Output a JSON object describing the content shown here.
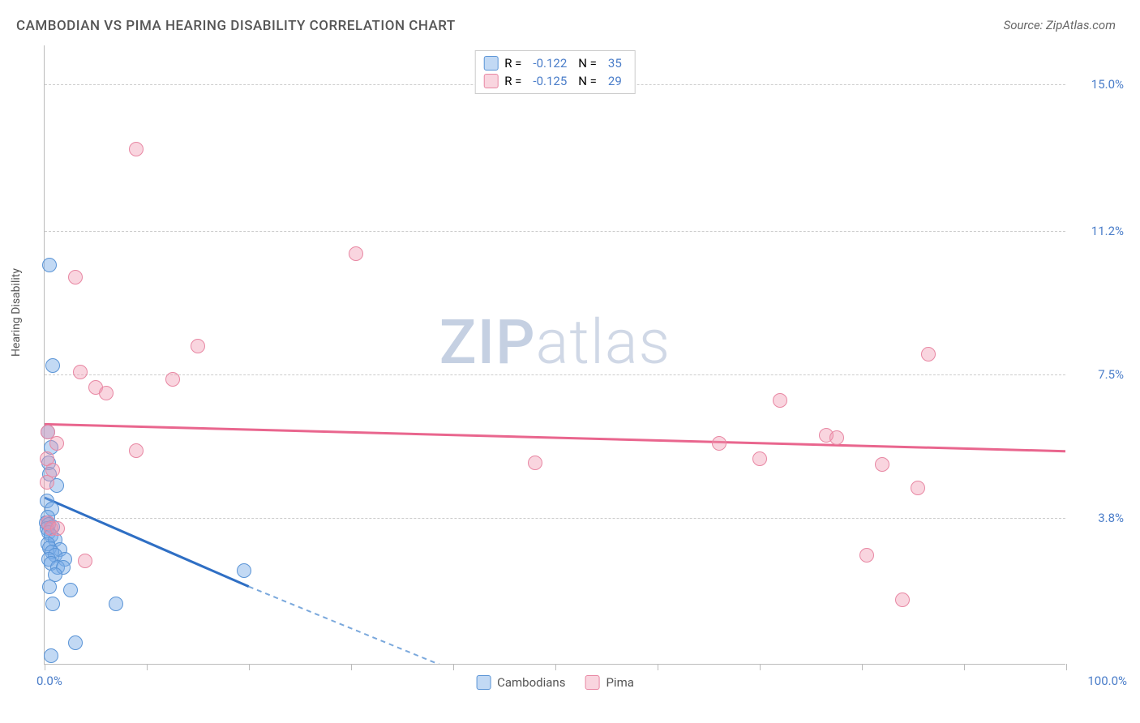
{
  "title": "CAMBODIAN VS PIMA HEARING DISABILITY CORRELATION CHART",
  "source": "Source: ZipAtlas.com",
  "ylabel": "Hearing Disability",
  "watermark_a": "ZIP",
  "watermark_b": "atlas",
  "chart": {
    "type": "scatter",
    "xlim": [
      0,
      100
    ],
    "ylim": [
      0,
      16
    ],
    "x_tick_positions": [
      0,
      10,
      20,
      30,
      40,
      50,
      60,
      70,
      80,
      90,
      100
    ],
    "x_start_label": "0.0%",
    "x_end_label": "100.0%",
    "y_gridlines": [
      {
        "v": 3.8,
        "label": "3.8%"
      },
      {
        "v": 7.5,
        "label": "7.5%"
      },
      {
        "v": 11.2,
        "label": "11.2%"
      },
      {
        "v": 15.0,
        "label": "15.0%"
      }
    ],
    "background_color": "#ffffff",
    "grid_color": "#cccccc",
    "axis_color": "#bbbbbb",
    "tick_label_color": "#4a7dc9",
    "text_color": "#555555",
    "title_fontsize": 17,
    "label_fontsize": 14,
    "tick_fontsize": 15,
    "point_radius": 9,
    "series": [
      {
        "name": "Cambodians",
        "fill": "rgba(120,170,230,0.45)",
        "stroke": "#5a94d6",
        "line_color": "#2f6fc4",
        "line_dash_color": "#7aa8dc",
        "trend": {
          "x1": 0,
          "y1": 4.3,
          "x2": 20,
          "y2": 2.0,
          "x2_dash": 45,
          "y2_dash": -0.7
        },
        "R": "-0.122",
        "N": "35",
        "points": [
          {
            "x": 0.5,
            "y": 10.3
          },
          {
            "x": 0.8,
            "y": 7.7
          },
          {
            "x": 0.3,
            "y": 6.0
          },
          {
            "x": 0.6,
            "y": 5.6
          },
          {
            "x": 0.4,
            "y": 5.2
          },
          {
            "x": 0.5,
            "y": 4.9
          },
          {
            "x": 1.2,
            "y": 4.6
          },
          {
            "x": 0.2,
            "y": 4.2
          },
          {
            "x": 0.7,
            "y": 4.0
          },
          {
            "x": 0.3,
            "y": 3.8
          },
          {
            "x": 0.15,
            "y": 3.65
          },
          {
            "x": 0.4,
            "y": 3.6
          },
          {
            "x": 0.8,
            "y": 3.55
          },
          {
            "x": 0.25,
            "y": 3.5
          },
          {
            "x": 0.4,
            "y": 3.4
          },
          {
            "x": 0.6,
            "y": 3.3
          },
          {
            "x": 1.0,
            "y": 3.2
          },
          {
            "x": 0.3,
            "y": 3.1
          },
          {
            "x": 0.5,
            "y": 3.0
          },
          {
            "x": 1.5,
            "y": 2.95
          },
          {
            "x": 0.7,
            "y": 2.9
          },
          {
            "x": 1.0,
            "y": 2.8
          },
          {
            "x": 0.4,
            "y": 2.7
          },
          {
            "x": 2.0,
            "y": 2.7
          },
          {
            "x": 0.6,
            "y": 2.6
          },
          {
            "x": 1.3,
            "y": 2.5
          },
          {
            "x": 1.8,
            "y": 2.5
          },
          {
            "x": 1.0,
            "y": 2.3
          },
          {
            "x": 19.5,
            "y": 2.4
          },
          {
            "x": 0.5,
            "y": 2.0
          },
          {
            "x": 2.5,
            "y": 1.9
          },
          {
            "x": 7.0,
            "y": 1.55
          },
          {
            "x": 0.8,
            "y": 1.55
          },
          {
            "x": 3.0,
            "y": 0.55
          },
          {
            "x": 0.6,
            "y": 0.2
          }
        ]
      },
      {
        "name": "Pima",
        "fill": "rgba(240,150,175,0.40)",
        "stroke": "#e887a3",
        "line_color": "#e9668e",
        "trend": {
          "x1": 0,
          "y1": 6.2,
          "x2": 100,
          "y2": 5.5
        },
        "R": "-0.125",
        "N": "29",
        "points": [
          {
            "x": 9.0,
            "y": 13.3
          },
          {
            "x": 30.5,
            "y": 10.6
          },
          {
            "x": 3.0,
            "y": 10.0
          },
          {
            "x": 15.0,
            "y": 8.2
          },
          {
            "x": 86.5,
            "y": 8.0
          },
          {
            "x": 3.5,
            "y": 7.55
          },
          {
            "x": 12.5,
            "y": 7.35
          },
          {
            "x": 5.0,
            "y": 7.15
          },
          {
            "x": 6.0,
            "y": 7.0
          },
          {
            "x": 72.0,
            "y": 6.8
          },
          {
            "x": 0.3,
            "y": 6.0
          },
          {
            "x": 76.5,
            "y": 5.9
          },
          {
            "x": 77.5,
            "y": 5.85
          },
          {
            "x": 66.0,
            "y": 5.7
          },
          {
            "x": 1.2,
            "y": 5.7
          },
          {
            "x": 9.0,
            "y": 5.5
          },
          {
            "x": 70.0,
            "y": 5.3
          },
          {
            "x": 82.0,
            "y": 5.15
          },
          {
            "x": 0.2,
            "y": 5.3
          },
          {
            "x": 85.5,
            "y": 4.55
          },
          {
            "x": 0.2,
            "y": 4.7
          },
          {
            "x": 48.0,
            "y": 5.2
          },
          {
            "x": 0.3,
            "y": 3.65
          },
          {
            "x": 0.6,
            "y": 3.5
          },
          {
            "x": 1.3,
            "y": 3.5
          },
          {
            "x": 80.5,
            "y": 2.8
          },
          {
            "x": 4.0,
            "y": 2.65
          },
          {
            "x": 84.0,
            "y": 1.65
          },
          {
            "x": 0.8,
            "y": 5.0
          }
        ]
      }
    ],
    "legend_top_labels": {
      "R": "R =",
      "N": "N ="
    },
    "legend_bottom": [
      "Cambodians",
      "Pima"
    ]
  }
}
